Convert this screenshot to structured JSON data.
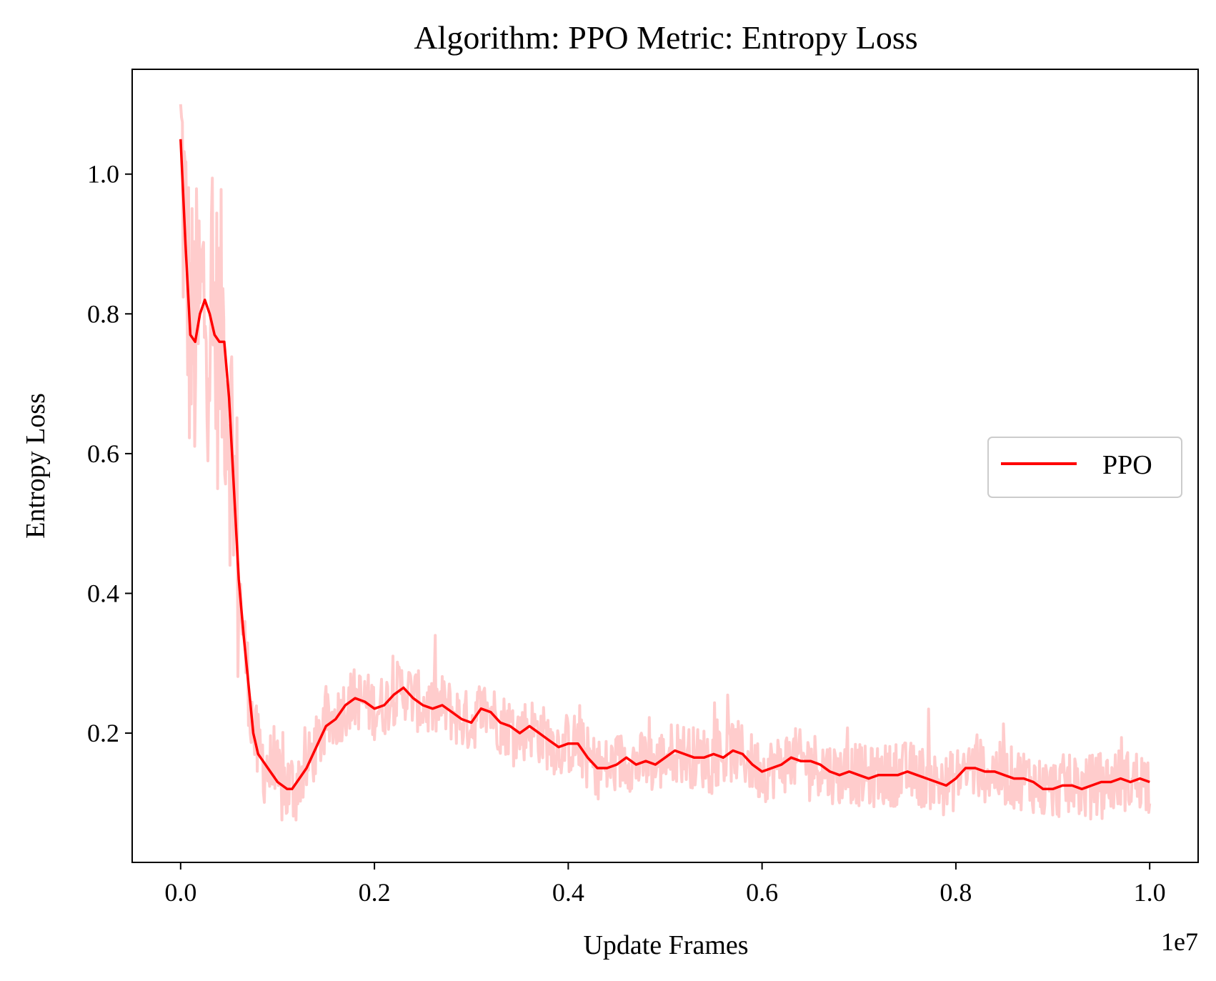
{
  "chart_data": {
    "type": "line",
    "title": "Algorithm: PPO Metric: Entropy Loss",
    "xlabel": "Update Frames",
    "ylabel": "Entropy Loss",
    "x_offset_label": "1e7",
    "xlim": [
      -0.05,
      1.05
    ],
    "ylim": [
      0.015,
      1.15
    ],
    "x_ticks": [
      0.0,
      0.2,
      0.4,
      0.6,
      0.8,
      1.0
    ],
    "x_tick_labels": [
      "0.0",
      "0.2",
      "0.4",
      "0.6",
      "0.8",
      "1.0"
    ],
    "y_ticks": [
      0.2,
      0.4,
      0.6,
      0.8,
      1.0
    ],
    "y_tick_labels": [
      "0.2",
      "0.4",
      "0.6",
      "0.8",
      "1.0"
    ],
    "grid": false,
    "legend_position": "center-right",
    "series": [
      {
        "name": "PPO",
        "color": "#ff0000",
        "x": [
          0.0,
          0.005,
          0.01,
          0.015,
          0.02,
          0.025,
          0.03,
          0.035,
          0.04,
          0.045,
          0.05,
          0.055,
          0.06,
          0.065,
          0.07,
          0.075,
          0.08,
          0.09,
          0.1,
          0.11,
          0.115,
          0.12,
          0.13,
          0.14,
          0.15,
          0.16,
          0.17,
          0.18,
          0.19,
          0.2,
          0.21,
          0.22,
          0.23,
          0.24,
          0.25,
          0.26,
          0.27,
          0.28,
          0.29,
          0.3,
          0.31,
          0.32,
          0.33,
          0.34,
          0.35,
          0.36,
          0.37,
          0.38,
          0.39,
          0.4,
          0.41,
          0.42,
          0.43,
          0.44,
          0.45,
          0.46,
          0.47,
          0.48,
          0.49,
          0.5,
          0.51,
          0.52,
          0.53,
          0.54,
          0.55,
          0.56,
          0.57,
          0.58,
          0.59,
          0.6,
          0.61,
          0.62,
          0.63,
          0.64,
          0.65,
          0.66,
          0.67,
          0.68,
          0.69,
          0.7,
          0.71,
          0.72,
          0.73,
          0.74,
          0.75,
          0.76,
          0.77,
          0.78,
          0.79,
          0.8,
          0.81,
          0.82,
          0.83,
          0.84,
          0.85,
          0.86,
          0.87,
          0.88,
          0.89,
          0.9,
          0.91,
          0.92,
          0.93,
          0.94,
          0.95,
          0.96,
          0.97,
          0.98,
          0.99,
          1.0
        ],
        "y": [
          1.05,
          0.9,
          0.77,
          0.76,
          0.8,
          0.82,
          0.8,
          0.77,
          0.76,
          0.76,
          0.68,
          0.55,
          0.42,
          0.34,
          0.27,
          0.2,
          0.17,
          0.15,
          0.13,
          0.12,
          0.12,
          0.13,
          0.15,
          0.18,
          0.21,
          0.22,
          0.24,
          0.25,
          0.245,
          0.235,
          0.24,
          0.255,
          0.265,
          0.25,
          0.24,
          0.235,
          0.24,
          0.23,
          0.22,
          0.215,
          0.235,
          0.23,
          0.215,
          0.21,
          0.2,
          0.21,
          0.2,
          0.19,
          0.18,
          0.185,
          0.185,
          0.165,
          0.15,
          0.15,
          0.155,
          0.165,
          0.155,
          0.16,
          0.155,
          0.165,
          0.175,
          0.17,
          0.165,
          0.165,
          0.17,
          0.165,
          0.175,
          0.17,
          0.155,
          0.145,
          0.15,
          0.155,
          0.165,
          0.16,
          0.16,
          0.155,
          0.145,
          0.14,
          0.145,
          0.14,
          0.135,
          0.14,
          0.14,
          0.14,
          0.145,
          0.14,
          0.135,
          0.13,
          0.125,
          0.135,
          0.15,
          0.15,
          0.145,
          0.145,
          0.14,
          0.135,
          0.135,
          0.13,
          0.12,
          0.12,
          0.125,
          0.125,
          0.12,
          0.125,
          0.13,
          0.13,
          0.135,
          0.13,
          0.135,
          0.13
        ]
      }
    ]
  },
  "colors": {
    "main_line": "#ff0000",
    "raw_band": "#ffcccc",
    "legend_border": "#cccccc"
  }
}
